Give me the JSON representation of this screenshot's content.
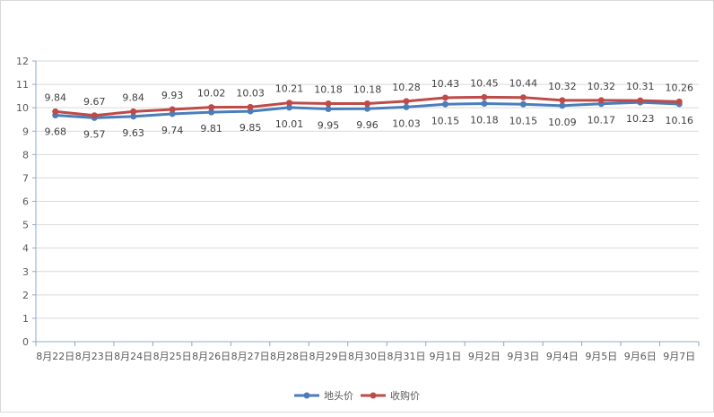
{
  "chart_data": {
    "type": "line",
    "title": "",
    "xlabel": "",
    "ylabel": "",
    "ylim": [
      0,
      12
    ],
    "yticks": [
      0,
      1,
      2,
      3,
      4,
      5,
      6,
      7,
      8,
      9,
      10,
      11,
      12
    ],
    "categories": [
      "8月22日",
      "8月23日",
      "8月24日",
      "8月25日",
      "8月26日",
      "8月27日",
      "8月28日",
      "8月29日",
      "8月30日",
      "8月31日",
      "9月1日",
      "9月2日",
      "9月3日",
      "9月4日",
      "9月5日",
      "9月6日",
      "9月7日"
    ],
    "series": [
      {
        "name": "地头价",
        "color": "#4a7ebb",
        "label_position": "below",
        "values": [
          9.68,
          9.57,
          9.63,
          9.74,
          9.81,
          9.85,
          10.01,
          9.95,
          9.96,
          10.03,
          10.15,
          10.18,
          10.15,
          10.09,
          10.17,
          10.23,
          10.16
        ]
      },
      {
        "name": "收购价",
        "color": "#be4b48",
        "label_position": "above",
        "values": [
          9.84,
          9.67,
          9.84,
          9.93,
          10.02,
          10.03,
          10.21,
          10.18,
          10.18,
          10.28,
          10.43,
          10.45,
          10.44,
          10.32,
          10.32,
          10.31,
          10.26
        ]
      }
    ],
    "grid": true,
    "legend": "bottom-center"
  }
}
